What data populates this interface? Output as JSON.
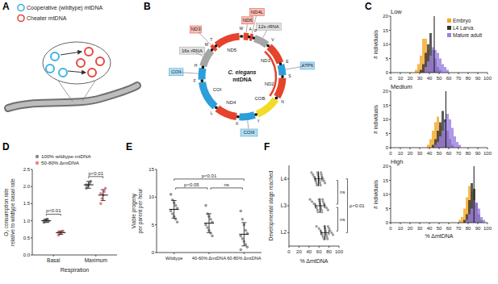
{
  "panel_labels": [
    "A",
    "B",
    "C",
    "D",
    "E",
    "F"
  ],
  "diagram_a": {
    "legend": [
      {
        "label": "Cooperative (wildtype) mtDNA",
        "color": "#3db4e6"
      },
      {
        "label": "Cheater mtDNA",
        "color": "#e8453c"
      }
    ]
  },
  "diagram_b": {
    "title": [
      "C. elegans",
      "mtDNA"
    ],
    "genes": [
      {
        "label": "ND6",
        "color": "#e5432b"
      },
      {
        "label": "ND4L",
        "color": "#e5432b"
      },
      {
        "label": "12s rRNA",
        "color": "#a5a5a5"
      },
      {
        "label": "ND1",
        "color": "#e5432b"
      },
      {
        "label": "ATP6",
        "color": "#2c9fdb"
      },
      {
        "label": "ND2",
        "color": "#e5432b"
      },
      {
        "label": "COB",
        "color": "#f1dc2a"
      },
      {
        "label": "COIII",
        "color": "#2c9fdb"
      },
      {
        "label": "ND4",
        "color": "#e5432b"
      },
      {
        "label": "COI",
        "color": "#2c9fdb"
      },
      {
        "label": "COII",
        "color": "#2c9fdb"
      },
      {
        "label": "16s rRNA",
        "color": "#a5a5a5"
      },
      {
        "label": "ND3",
        "color": "#e5432b"
      },
      {
        "label": "ND5",
        "color": "#e5432b"
      }
    ],
    "trnas": [
      "A",
      "P",
      "V",
      "E",
      "S",
      "N",
      "Y",
      "K",
      "L",
      "F",
      "H",
      "M",
      "T",
      "W"
    ]
  },
  "chart_data": [
    {
      "type": "histogram",
      "title": "Low",
      "bins": [
        25,
        27.5,
        30,
        32.5,
        35,
        37.5,
        40,
        42.5,
        45,
        47.5,
        50,
        52.5,
        55,
        57.5,
        60,
        62.5
      ],
      "series": [
        {
          "name": "Embryo",
          "color": "#f5a623",
          "values": [
            1,
            3,
            6,
            12,
            12,
            8,
            4,
            2,
            1,
            0,
            0,
            0,
            0,
            0,
            0
          ]
        },
        {
          "name": "L4 Larva",
          "color": "#333333",
          "values": [
            0,
            0,
            1,
            3,
            7,
            10,
            14,
            8,
            5,
            2,
            1,
            0,
            0,
            0,
            0
          ]
        },
        {
          "name": "Mature adult",
          "color": "#9b7fe0",
          "values": [
            0,
            0,
            0,
            0,
            2,
            4,
            6,
            9,
            8,
            7,
            5,
            3,
            2,
            1,
            0
          ]
        }
      ],
      "reference_line": 45,
      "xlim": [
        0,
        100
      ],
      "xticks": [
        0,
        10,
        20,
        30,
        40,
        50,
        60,
        70,
        80,
        90,
        100
      ],
      "ylim": [
        0,
        20
      ],
      "yticks": [
        0,
        5,
        10,
        15,
        20
      ],
      "ylabel": "# individuals",
      "legend": "top-right"
    },
    {
      "type": "histogram",
      "title": "Medium",
      "bins": [
        37.5,
        40,
        42.5,
        45,
        47.5,
        50,
        52.5,
        55,
        57.5,
        60,
        62.5,
        65,
        67.5,
        70,
        72.5
      ],
      "series": [
        {
          "color": "#f5a623",
          "values": [
            1,
            3,
            6,
            9,
            11,
            8,
            5,
            3,
            1,
            0,
            0,
            0,
            0,
            0
          ]
        },
        {
          "color": "#333333",
          "values": [
            0,
            0,
            1,
            3,
            6,
            9,
            13,
            10,
            6,
            3,
            1,
            0,
            0,
            0
          ]
        },
        {
          "color": "#9b7fe0",
          "values": [
            0,
            0,
            0,
            1,
            2,
            4,
            6,
            9,
            12,
            10,
            7,
            4,
            2,
            1
          ]
        }
      ],
      "reference_line": 57,
      "xlim": [
        0,
        100
      ],
      "xticks": [
        0,
        10,
        20,
        30,
        40,
        50,
        60,
        70,
        80,
        90,
        100
      ],
      "ylim": [
        0,
        20
      ],
      "yticks": [
        0,
        5,
        10,
        15,
        20
      ],
      "ylabel": "# individuals"
    },
    {
      "type": "histogram",
      "title": "High",
      "bins": [
        70,
        72.5,
        75,
        77.5,
        80,
        82.5,
        85,
        87.5,
        90,
        92.5,
        95,
        97.5
      ],
      "series": [
        {
          "color": "#f5a623",
          "values": [
            1,
            2,
            5,
            9,
            13,
            11,
            6,
            3,
            1,
            0,
            0
          ]
        },
        {
          "color": "#333333",
          "values": [
            0,
            0,
            1,
            3,
            8,
            14,
            12,
            7,
            3,
            1,
            0
          ]
        },
        {
          "color": "#9b7fe0",
          "values": [
            0,
            0,
            0,
            1,
            3,
            5,
            8,
            7,
            5,
            2,
            1
          ]
        }
      ],
      "reference_line": 86,
      "xlim": [
        0,
        100
      ],
      "xticks": [
        0,
        10,
        20,
        30,
        40,
        50,
        60,
        70,
        80,
        90,
        100
      ],
      "ylim": [
        0,
        20
      ],
      "yticks": [
        0,
        5,
        10,
        15,
        20
      ],
      "ylabel": "# individuals",
      "xlabel": "% ΔmtDNA"
    },
    {
      "type": "dot_plot",
      "categories": [
        "Basal",
        "Maximum"
      ],
      "xlabel": "Respiration",
      "ylabel": [
        "O₂ consumption rate",
        "relative to wildtype basal rate"
      ],
      "ylim": [
        0,
        2.5
      ],
      "yticks": [
        {
          "value": 0,
          "label": "0.0"
        },
        {
          "value": 0.5,
          "label": "0.5"
        },
        {
          "value": 1,
          "label": "1.0"
        },
        {
          "value": 1.5,
          "label": "1.5"
        },
        {
          "value": 2,
          "label": "2.0"
        },
        {
          "value": 2.5,
          "label": "2.5"
        }
      ],
      "legend": "top-left",
      "series": [
        {
          "name": "100% wildtype mtDNA",
          "color": "#8c8c8c",
          "values": [
            1.0,
            2.05
          ],
          "errors": [
            0.05,
            0.1
          ],
          "points": [
            [
              0.95,
              1.0,
              1.02,
              1.05,
              0.98,
              1.0
            ],
            [
              1.95,
              2.0,
              2.05,
              2.1,
              2.15,
              2.05
            ]
          ]
        },
        {
          "name": "50-80% ΔmtDNA",
          "color": "#e8828c",
          "values": [
            0.65,
            1.75
          ],
          "errors": [
            0.05,
            0.16
          ],
          "points": [
            [
              0.58,
              0.62,
              0.65,
              0.68,
              0.7,
              0.67
            ],
            [
              1.5,
              1.65,
              1.75,
              1.85,
              1.95,
              1.8
            ]
          ]
        }
      ],
      "annotations": [
        {
          "category": 0,
          "label": "p<0.01"
        },
        {
          "category": 1,
          "label": "p<0.01"
        }
      ]
    },
    {
      "type": "dot_plot",
      "categories": [
        "Wildtype",
        "40-60% ΔmtDNA",
        "60-80% ΔmtDNA"
      ],
      "ylabel": [
        "Viable progeny",
        "per parent per hour"
      ],
      "ylim": [
        0,
        15
      ],
      "yticks": [
        0,
        5,
        10,
        15
      ],
      "series": [
        {
          "color": "#999999",
          "values": [
            7.8,
            5.3,
            3.3
          ],
          "errors": [
            1.6,
            1.7,
            2.1
          ],
          "points": [
            [
              10.5,
              9.5,
              9,
              8.5,
              8,
              7.5,
              7,
              6.5,
              6,
              5.5
            ],
            [
              8.5,
              7,
              6.5,
              6,
              5.5,
              5,
              4.5,
              4,
              3.5,
              3
            ],
            [
              7.5,
              6,
              5,
              4,
              3.5,
              3,
              2.5,
              2,
              1.5,
              1,
              0.5
            ]
          ]
        }
      ],
      "comparisons": [
        {
          "pair": [
            0,
            1
          ],
          "label": "p<0.05"
        },
        {
          "pair": [
            1,
            2
          ],
          "label": "ns"
        },
        {
          "pair": [
            0,
            2
          ],
          "label": "p<0.01"
        }
      ]
    },
    {
      "type": "dot_plot",
      "orientation": "horizontal",
      "categories": [
        "L4",
        "L3",
        "L2"
      ],
      "xlabel": "% ΔmtDNA",
      "ylabel": "Developmental stage reached",
      "xlim": [
        0,
        100
      ],
      "xticks": [
        0,
        20,
        40,
        60,
        80,
        100
      ],
      "series": [
        {
          "color": "#999999",
          "values": [
            59,
            62,
            72
          ],
          "errors": [
            7,
            9,
            8
          ],
          "points": [
            [
              45,
              48,
              50,
              52,
              54,
              55,
              56,
              57,
              58,
              59,
              60,
              61,
              62,
              63,
              64,
              65,
              66,
              68,
              70,
              72
            ],
            [
              42,
              46,
              50,
              53,
              55,
              57,
              58,
              60,
              61,
              62,
              63,
              64,
              65,
              66,
              67,
              68,
              70,
              72,
              75,
              78
            ],
            [
              55,
              60,
              63,
              65,
              67,
              68,
              70,
              71,
              72,
              73,
              74,
              75,
              76,
              77,
              78,
              80,
              82,
              85,
              88
            ]
          ]
        }
      ],
      "comparisons": [
        {
          "pair": [
            0,
            1
          ],
          "label": "ns"
        },
        {
          "pair": [
            1,
            2
          ],
          "label": "ns"
        },
        {
          "pair": [
            0,
            2
          ],
          "label": "p<0.01"
        }
      ]
    }
  ]
}
